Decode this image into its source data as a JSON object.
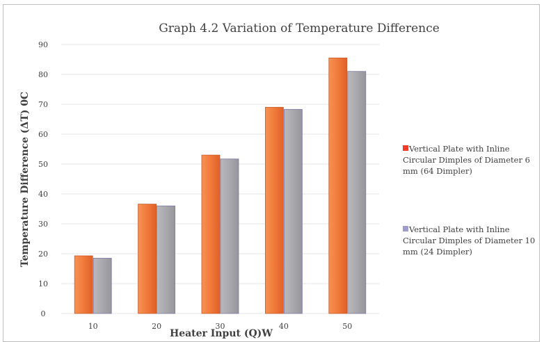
{
  "chart_data": {
    "type": "bar",
    "title": "Graph 4.2 Variation of Temperature Difference",
    "xlabel": "Heater Input (Q)W",
    "ylabel": "Temperature Difference (ΔT) 0C",
    "categories": [
      "10",
      "20",
      "30",
      "40",
      "50"
    ],
    "ylim": [
      0,
      90
    ],
    "yticks": [
      0,
      10,
      20,
      30,
      40,
      50,
      60,
      70,
      80,
      90
    ],
    "grid": true,
    "legend_position": "right",
    "series": [
      {
        "name": "Vertical Plate with Inline Circular Dimples of Diameter 6 mm (64 Dimpler)",
        "color": "#f07a3a",
        "values": [
          19.3,
          36.6,
          53,
          69,
          85.5
        ]
      },
      {
        "name": "Vertical Plate with Inline Circular Dimples of Diameter 10 mm (24 Dimpler)",
        "color": "#a9a8ad",
        "values": [
          18.5,
          36,
          51.7,
          68.3,
          81
        ]
      }
    ]
  }
}
